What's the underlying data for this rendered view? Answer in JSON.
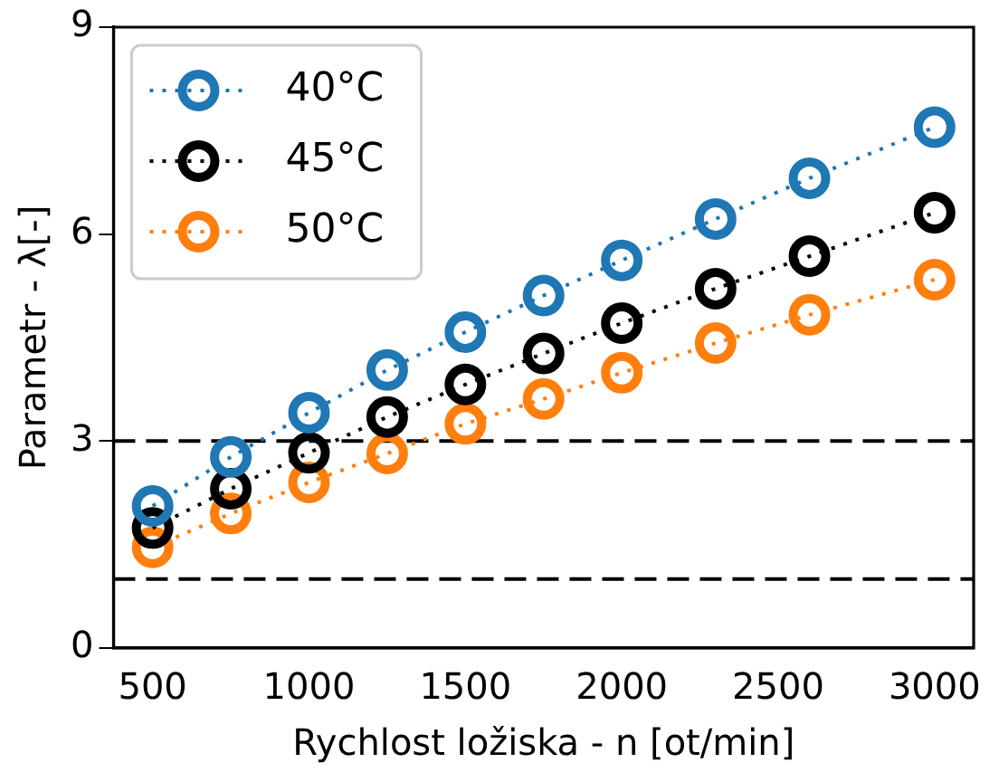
{
  "chart_data": {
    "type": "line",
    "xlabel": "Rychlost ložiska - n [ot/min]",
    "ylabel": "Parametr - λ[-]",
    "x": [
      500,
      750,
      1000,
      1250,
      1500,
      1750,
      2000,
      2300,
      2600,
      3000
    ],
    "series": [
      {
        "name": "40°C",
        "color": "#1f77b4",
        "values": [
          2.06,
          2.77,
          3.41,
          4.03,
          4.58,
          5.11,
          5.62,
          6.22,
          6.81,
          7.55
        ]
      },
      {
        "name": "45°C",
        "color": "#000000",
        "values": [
          1.74,
          2.31,
          2.83,
          3.35,
          3.82,
          4.27,
          4.71,
          5.21,
          5.68,
          6.31
        ]
      },
      {
        "name": "50°C",
        "color": "#ff7f0e",
        "values": [
          1.46,
          1.95,
          2.4,
          2.82,
          3.25,
          3.61,
          3.99,
          4.42,
          4.83,
          5.34
        ]
      }
    ],
    "xlim": [
      375,
      3125
    ],
    "xticks": [
      500,
      1000,
      1500,
      2000,
      2500,
      3000
    ],
    "ylim": [
      0,
      9
    ],
    "yticks": [
      0,
      3,
      6,
      9
    ],
    "ref_lines": [
      {
        "axis": "y",
        "value": 3,
        "color": "#000000",
        "line_style": "dashed"
      },
      {
        "axis": "y",
        "value": 1,
        "color": "#000000",
        "line_style": "dashed"
      }
    ],
    "legend": "top left",
    "marker": "circle",
    "line_style": "dotted",
    "grid": false
  }
}
